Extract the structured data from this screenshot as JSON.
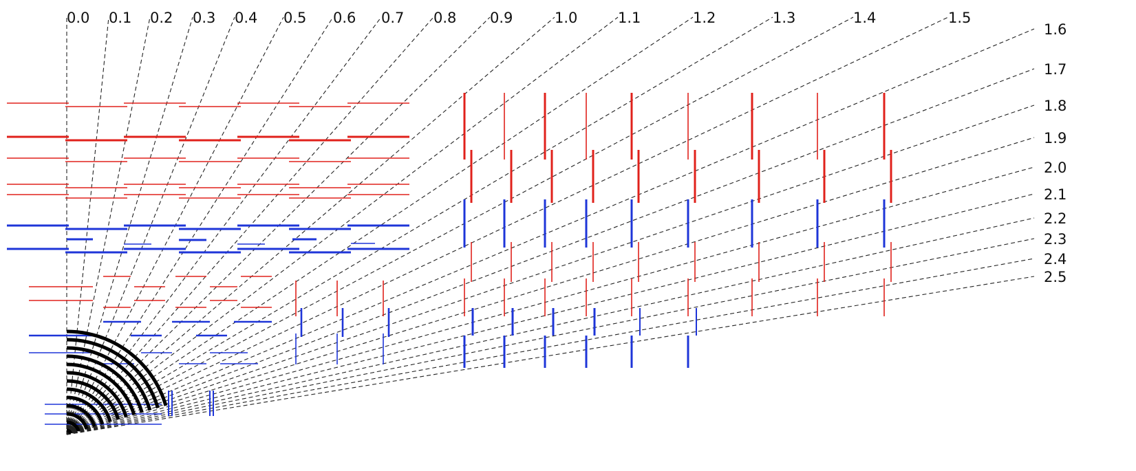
{
  "colors": {
    "red": "#e0211b",
    "blue": "#1e35d8",
    "eta_lines": "#222222",
    "background": "#ffffff"
  },
  "eta_labels": [
    "0.0",
    "0.1",
    "0.2",
    "0.3",
    "0.4",
    "0.5",
    "0.6",
    "0.7",
    "0.8",
    "0.9",
    "1.0",
    "1.1",
    "1.2",
    "1.3",
    "1.4",
    "1.5",
    "1.6",
    "1.7",
    "1.8",
    "1.9",
    "2.0",
    "2.1",
    "2.2",
    "2.3",
    "2.4",
    "2.5"
  ]
}
